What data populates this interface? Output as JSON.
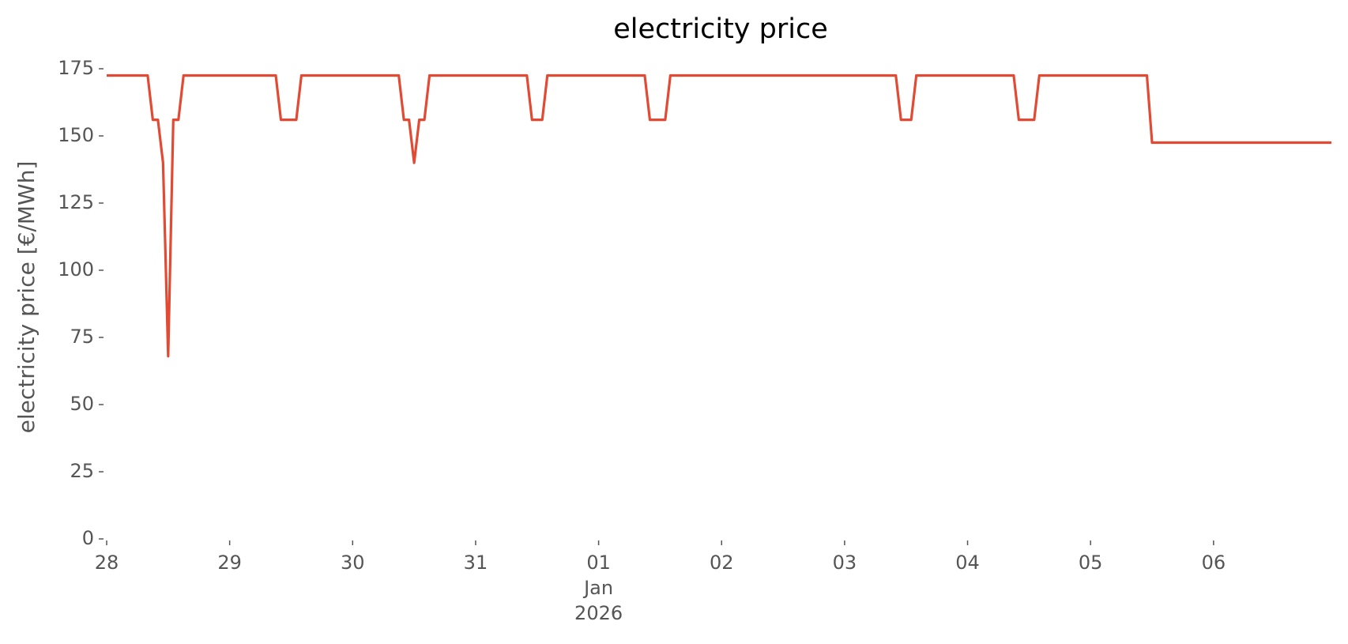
{
  "chart_data": {
    "type": "line",
    "title": "electricity price",
    "ylabel": "electricity price [€/MWh]",
    "x": [
      0,
      8,
      9,
      10,
      11,
      12,
      13,
      14,
      15,
      33,
      34,
      37,
      38,
      57,
      58,
      59,
      60,
      61,
      62,
      63,
      82,
      83,
      85,
      86,
      105,
      106,
      109,
      110,
      154,
      155,
      157,
      158,
      177,
      178,
      181,
      182,
      203,
      204,
      239
    ],
    "series": [
      {
        "name": "electricity price",
        "color": "#e24a33",
        "values": [
          172.5,
          172.5,
          156,
          156,
          140,
          68,
          156,
          156,
          172.5,
          172.5,
          156,
          156,
          172.5,
          172.5,
          156,
          156,
          140,
          156,
          156,
          172.5,
          172.5,
          156,
          156,
          172.5,
          172.5,
          156,
          156,
          172.5,
          172.5,
          156,
          156,
          172.5,
          172.5,
          156,
          156,
          172.5,
          172.5,
          147.5,
          147.5
        ]
      }
    ],
    "xlim": [
      0,
      239
    ],
    "xticks": [
      {
        "value": 0,
        "label": "28"
      },
      {
        "value": 24,
        "label": "29"
      },
      {
        "value": 48,
        "label": "30"
      },
      {
        "value": 72,
        "label": "31"
      },
      {
        "value": 96,
        "label": "01\nJan\n2026"
      },
      {
        "value": 120,
        "label": "02"
      },
      {
        "value": 144,
        "label": "03"
      },
      {
        "value": 168,
        "label": "04"
      },
      {
        "value": 192,
        "label": "05"
      },
      {
        "value": 216,
        "label": "06"
      }
    ],
    "ylim": [
      0,
      175
    ],
    "yticks": [
      0,
      25,
      50,
      75,
      100,
      125,
      150,
      175
    ],
    "grid": false
  }
}
